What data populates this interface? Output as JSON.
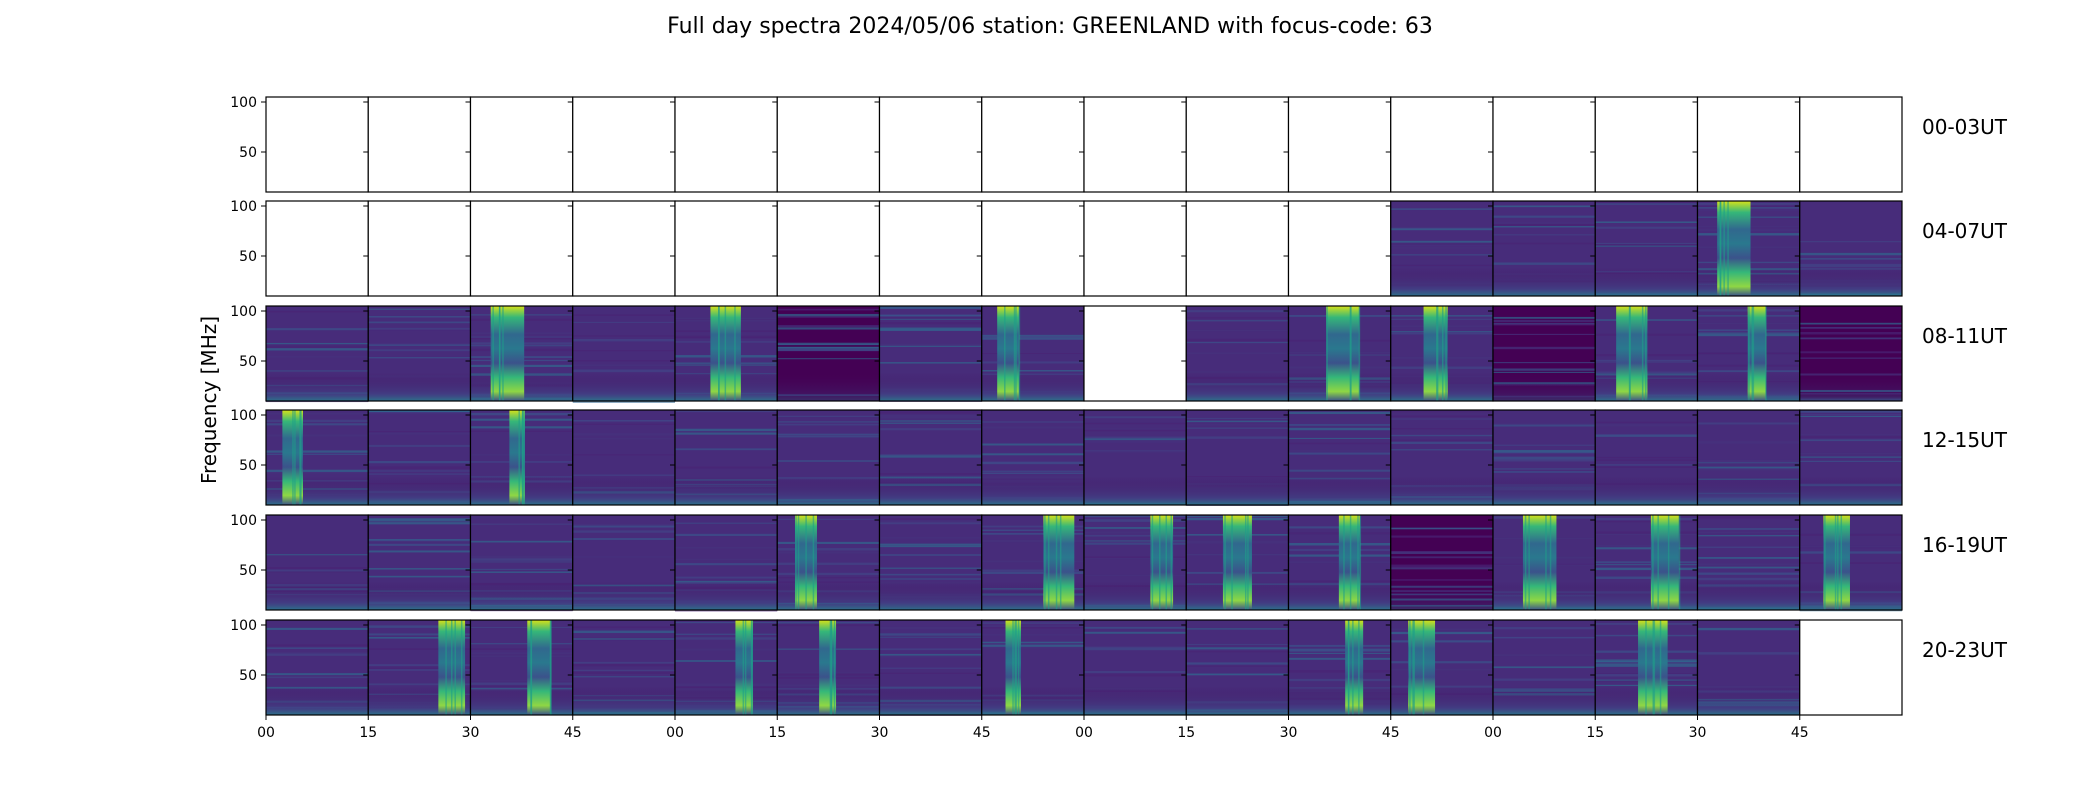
{
  "chart_data": {
    "type": "heatmap",
    "title": "Full day spectra 2024/05/06 station: GREENLAND with focus-code: 63",
    "ylabel": "Frequency [MHz]",
    "xlabel": "",
    "ylim": [
      10,
      105
    ],
    "yticks": [
      50,
      100
    ],
    "xtick_labels": [
      "00",
      "15",
      "30",
      "45",
      "00",
      "15",
      "30",
      "45",
      "00",
      "15",
      "30",
      "45",
      "00",
      "15",
      "30",
      "45"
    ],
    "colormap": "viridis",
    "row_labels": [
      "00-03UT",
      "04-07UT",
      "08-11UT",
      "12-15UT",
      "16-19UT",
      "20-23UT"
    ],
    "panels_per_row": 16,
    "panel_minutes": 15,
    "grid": false,
    "panels": [
      [
        "empty",
        "empty",
        "empty",
        "empty",
        "empty",
        "empty",
        "empty",
        "empty",
        "empty",
        "empty",
        "empty",
        "empty",
        "empty",
        "empty",
        "empty",
        "empty"
      ],
      [
        "empty",
        "empty",
        "empty",
        "empty",
        "empty",
        "empty",
        "empty",
        "empty",
        "empty",
        "empty",
        "empty",
        "quiet",
        "quiet",
        "quiet",
        "burst",
        "quiet"
      ],
      [
        "quiet",
        "quiet",
        "burst",
        "quiet",
        "burst",
        "dark",
        "quiet",
        "burst",
        "empty",
        "quiet",
        "burst",
        "burst",
        "dark",
        "burst",
        "burst",
        "dark"
      ],
      [
        "burst",
        "quiet",
        "burst",
        "quiet",
        "quiet",
        "quiet",
        "quiet",
        "quiet",
        "quiet",
        "quiet",
        "quiet",
        "quiet",
        "quiet",
        "quiet",
        "quiet",
        "quiet"
      ],
      [
        "quiet",
        "quiet",
        "quiet",
        "quiet",
        "quiet",
        "burst",
        "quiet",
        "burst",
        "burst",
        "burst",
        "burst",
        "dark",
        "burst",
        "burst",
        "quiet",
        "burst"
      ],
      [
        "quiet",
        "burst",
        "burst",
        "quiet",
        "burst",
        "burst",
        "quiet",
        "burst",
        "quiet",
        "quiet",
        "burst",
        "burst",
        "quiet",
        "burst",
        "quiet",
        "empty"
      ]
    ]
  }
}
